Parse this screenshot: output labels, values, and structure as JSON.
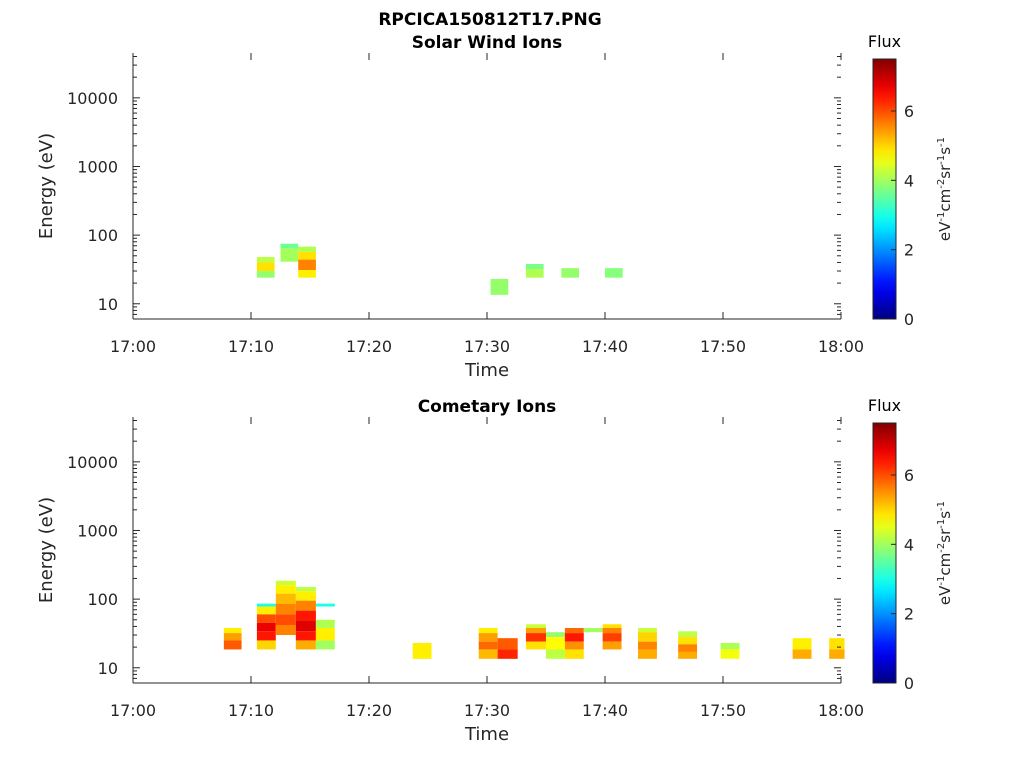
{
  "figure_title": "RPCICA150812T17.PNG",
  "colorbar": {
    "title": "Flux",
    "unit_parts": [
      {
        "t": "eV",
        "sup": false
      },
      {
        "t": "-1",
        "sup": true
      },
      {
        "t": "cm",
        "sup": false
      },
      {
        "t": "-2",
        "sup": true
      },
      {
        "t": "sr",
        "sup": false
      },
      {
        "t": "-1",
        "sup": true
      },
      {
        "t": "s",
        "sup": false
      },
      {
        "t": "-1",
        "sup": true
      }
    ],
    "range": [
      0,
      7.5
    ],
    "ticks": [
      "0",
      "2",
      "4",
      "6"
    ],
    "colormap": "jet"
  },
  "chart_data": [
    {
      "type": "heatmap",
      "title": "Solar Wind Ions",
      "xlabel": "Time",
      "ylabel": "Energy (eV)",
      "xlim": [
        "17:00",
        "18:00"
      ],
      "ylim": [
        6,
        45000
      ],
      "yscale": "log",
      "xticks": [
        "17:00",
        "17:10",
        "17:20",
        "17:30",
        "17:40",
        "17:50",
        "18:00"
      ],
      "yticks": [
        "10",
        "100",
        "1000",
        "10000"
      ],
      "cells": [
        {
          "t": [
            "17:10.5",
            "17:12"
          ],
          "e": [
            40,
            48
          ],
          "v": 4.2
        },
        {
          "t": [
            "17:10.5",
            "17:12"
          ],
          "e": [
            30,
            40
          ],
          "v": 4.9
        },
        {
          "t": [
            "17:10.5",
            "17:12"
          ],
          "e": [
            24,
            30
          ],
          "v": 3.9
        },
        {
          "t": [
            "17:12.5",
            "17:14"
          ],
          "e": [
            65,
            75
          ],
          "v": 3.6
        },
        {
          "t": [
            "17:12.5",
            "17:14"
          ],
          "e": [
            41,
            65
          ],
          "v": 4.0
        },
        {
          "t": [
            "17:14",
            "17:15.5"
          ],
          "e": [
            57,
            68
          ],
          "v": 4.1
        },
        {
          "t": [
            "17:14",
            "17:15.5"
          ],
          "e": [
            44,
            57
          ],
          "v": 4.9
        },
        {
          "t": [
            "17:14",
            "17:15.5"
          ],
          "e": [
            31,
            44
          ],
          "v": 5.6
        },
        {
          "t": [
            "17:14",
            "17:15.5"
          ],
          "e": [
            24,
            31
          ],
          "v": 4.8
        },
        {
          "t": [
            "17:30.3",
            "17:31.8"
          ],
          "e": [
            13.5,
            23
          ],
          "v": 3.9
        },
        {
          "t": [
            "17:33.3",
            "17:34.8"
          ],
          "e": [
            32,
            38
          ],
          "v": 3.7
        },
        {
          "t": [
            "17:33.3",
            "17:34.8"
          ],
          "e": [
            24,
            32
          ],
          "v": 4.1
        },
        {
          "t": [
            "17:36.3",
            "17:37.8"
          ],
          "e": [
            24,
            33
          ],
          "v": 3.9
        },
        {
          "t": [
            "17:40",
            "17:41.5"
          ],
          "e": [
            24,
            33
          ],
          "v": 3.8
        }
      ]
    },
    {
      "type": "heatmap",
      "title": "Cometary Ions",
      "xlabel": "Time",
      "ylabel": "Energy (eV)",
      "xlim": [
        "17:00",
        "18:00"
      ],
      "ylim": [
        6,
        45000
      ],
      "yscale": "log",
      "xticks": [
        "17:00",
        "17:10",
        "17:20",
        "17:30",
        "17:40",
        "17:50",
        "18:00"
      ],
      "yticks": [
        "10",
        "100",
        "1000",
        "10000"
      ],
      "cells": [
        {
          "t": [
            "17:07.7",
            "17:09.2"
          ],
          "e": [
            32,
            38
          ],
          "v": 4.8
        },
        {
          "t": [
            "17:07.7",
            "17:09.2"
          ],
          "e": [
            25,
            32
          ],
          "v": 5.4
        },
        {
          "t": [
            "17:07.7",
            "17:09.2"
          ],
          "e": [
            18.5,
            25
          ],
          "v": 5.9
        },
        {
          "t": [
            "17:10.5",
            "17:12.1"
          ],
          "e": [
            78,
            86
          ],
          "v": 3.0
        },
        {
          "t": [
            "17:10.5",
            "17:12.1"
          ],
          "e": [
            60,
            78
          ],
          "v": 4.8
        },
        {
          "t": [
            "17:10.5",
            "17:12.1"
          ],
          "e": [
            45,
            60
          ],
          "v": 6.0
        },
        {
          "t": [
            "17:10.5",
            "17:12.1"
          ],
          "e": [
            34,
            45
          ],
          "v": 6.7
        },
        {
          "t": [
            "17:10.5",
            "17:12.1"
          ],
          "e": [
            25,
            34
          ],
          "v": 6.4
        },
        {
          "t": [
            "17:10.5",
            "17:12.1"
          ],
          "e": [
            18.5,
            25
          ],
          "v": 5.0
        },
        {
          "t": [
            "17:12.1",
            "17:13.8"
          ],
          "e": [
            160,
            185
          ],
          "v": 4.3
        },
        {
          "t": [
            "17:12.1",
            "17:13.8"
          ],
          "e": [
            120,
            160
          ],
          "v": 4.8
        },
        {
          "t": [
            "17:12.1",
            "17:13.8"
          ],
          "e": [
            85,
            120
          ],
          "v": 5.2
        },
        {
          "t": [
            "17:12.1",
            "17:13.8"
          ],
          "e": [
            60,
            85
          ],
          "v": 5.6
        },
        {
          "t": [
            "17:12.1",
            "17:13.8"
          ],
          "e": [
            42,
            60
          ],
          "v": 6.0
        },
        {
          "t": [
            "17:12.1",
            "17:13.8"
          ],
          "e": [
            30,
            42
          ],
          "v": 5.6
        },
        {
          "t": [
            "17:13.8",
            "17:15.5"
          ],
          "e": [
            130,
            150
          ],
          "v": 4.2
        },
        {
          "t": [
            "17:13.8",
            "17:15.5"
          ],
          "e": [
            95,
            130
          ],
          "v": 4.8
        },
        {
          "t": [
            "17:13.8",
            "17:15.5"
          ],
          "e": [
            68,
            95
          ],
          "v": 5.6
        },
        {
          "t": [
            "17:13.8",
            "17:15.5"
          ],
          "e": [
            48,
            68
          ],
          "v": 6.4
        },
        {
          "t": [
            "17:13.8",
            "17:15.5"
          ],
          "e": [
            34,
            48
          ],
          "v": 6.8
        },
        {
          "t": [
            "17:13.8",
            "17:15.5"
          ],
          "e": [
            25,
            34
          ],
          "v": 6.4
        },
        {
          "t": [
            "17:13.8",
            "17:15.5"
          ],
          "e": [
            18.5,
            25
          ],
          "v": 5.3
        },
        {
          "t": [
            "17:15.5",
            "17:17.1"
          ],
          "e": [
            78,
            86
          ],
          "v": 3.0
        },
        {
          "t": [
            "17:15.5",
            "17:17.1"
          ],
          "e": [
            38,
            50
          ],
          "v": 4.1
        },
        {
          "t": [
            "17:15.5",
            "17:17.1"
          ],
          "e": [
            25,
            38
          ],
          "v": 4.8
        },
        {
          "t": [
            "17:15.5",
            "17:17.1"
          ],
          "e": [
            18.5,
            25
          ],
          "v": 4.0
        },
        {
          "t": [
            "17:23.7",
            "17:25.3"
          ],
          "e": [
            13.5,
            23
          ],
          "v": 4.8
        },
        {
          "t": [
            "17:29.3",
            "17:30.9"
          ],
          "e": [
            32,
            38
          ],
          "v": 4.8
        },
        {
          "t": [
            "17:29.3",
            "17:30.9"
          ],
          "e": [
            24,
            32
          ],
          "v": 5.4
        },
        {
          "t": [
            "17:29.3",
            "17:30.9"
          ],
          "e": [
            18.5,
            24
          ],
          "v": 5.8
        },
        {
          "t": [
            "17:29.3",
            "17:30.9"
          ],
          "e": [
            13.5,
            18.5
          ],
          "v": 5.2
        },
        {
          "t": [
            "17:30.9",
            "17:32.6"
          ],
          "e": [
            18.5,
            27
          ],
          "v": 5.9
        },
        {
          "t": [
            "17:30.9",
            "17:32.6"
          ],
          "e": [
            13.5,
            18.5
          ],
          "v": 6.3
        },
        {
          "t": [
            "17:33.3",
            "17:35",
            ""
          ],
          "e": [
            38,
            43
          ],
          "v": 4.3
        },
        {
          "t": [
            "17:33.3",
            "17:35"
          ],
          "e": [
            32,
            38
          ],
          "v": 5.4
        },
        {
          "t": [
            "17:33.3",
            "17:35"
          ],
          "e": [
            24,
            32
          ],
          "v": 6.2
        },
        {
          "t": [
            "17:33.3",
            "17:35"
          ],
          "e": [
            18.5,
            24
          ],
          "v": 4.9
        },
        {
          "t": [
            "17:35",
            "17:36.6"
          ],
          "e": [
            28,
            33
          ],
          "v": 3.9
        },
        {
          "t": [
            "17:35",
            "17:36.6"
          ],
          "e": [
            18.5,
            28
          ],
          "v": 4.7
        },
        {
          "t": [
            "17:35",
            "17:36.6"
          ],
          "e": [
            13.5,
            18.5
          ],
          "v": 4.2
        },
        {
          "t": [
            "17:36.6",
            "17:38.2"
          ],
          "e": [
            32,
            38
          ],
          "v": 5.8
        },
        {
          "t": [
            "17:36.6",
            "17:38.2"
          ],
          "e": [
            24,
            32
          ],
          "v": 6.4
        },
        {
          "t": [
            "17:36.6",
            "17:38.2"
          ],
          "e": [
            18.5,
            24
          ],
          "v": 5.5
        },
        {
          "t": [
            "17:36.6",
            "17:38.2"
          ],
          "e": [
            13.5,
            18.5
          ],
          "v": 4.9
        },
        {
          "t": [
            "17:38.2",
            "17:39.8"
          ],
          "e": [
            33,
            38
          ],
          "v": 4.0
        },
        {
          "t": [
            "17:39.8",
            "17:41.4"
          ],
          "e": [
            38,
            43
          ],
          "v": 4.9
        },
        {
          "t": [
            "17:39.8",
            "17:41.4"
          ],
          "e": [
            32,
            38
          ],
          "v": 5.6
        },
        {
          "t": [
            "17:39.8",
            "17:41.4"
          ],
          "e": [
            24,
            32
          ],
          "v": 6.1
        },
        {
          "t": [
            "17:39.8",
            "17:41.4"
          ],
          "e": [
            18.5,
            24
          ],
          "v": 5.4
        },
        {
          "t": [
            "17:42.8",
            "17:44.4"
          ],
          "e": [
            33,
            38
          ],
          "v": 4.3
        },
        {
          "t": [
            "17:42.8",
            "17:44.4"
          ],
          "e": [
            24,
            33
          ],
          "v": 5.0
        },
        {
          "t": [
            "17:42.8",
            "17:44.4"
          ],
          "e": [
            18.5,
            24
          ],
          "v": 5.6
        },
        {
          "t": [
            "17:42.8",
            "17:44.4"
          ],
          "e": [
            13.5,
            18.5
          ],
          "v": 5.3
        },
        {
          "t": [
            "17:46.2",
            "17:47.8"
          ],
          "e": [
            28,
            34
          ],
          "v": 4.2
        },
        {
          "t": [
            "17:46.2",
            "17:47.8"
          ],
          "e": [
            22,
            28
          ],
          "v": 4.9
        },
        {
          "t": [
            "17:46.2",
            "17:47.8"
          ],
          "e": [
            17,
            22
          ],
          "v": 5.6
        },
        {
          "t": [
            "17:46.2",
            "17:47.8"
          ],
          "e": [
            13.5,
            17
          ],
          "v": 5.3
        },
        {
          "t": [
            "17:49.8",
            "17:51.4"
          ],
          "e": [
            18.5,
            23
          ],
          "v": 4.1
        },
        {
          "t": [
            "17:49.8",
            "17:51.4"
          ],
          "e": [
            13.5,
            18.5
          ],
          "v": 4.6
        },
        {
          "t": [
            "17:55.9",
            "17:57.5"
          ],
          "e": [
            18.5,
            27
          ],
          "v": 4.8
        },
        {
          "t": [
            "17:55.9",
            "17:57.5"
          ],
          "e": [
            13.5,
            18.5
          ],
          "v": 5.3
        },
        {
          "t": [
            "17:59",
            "18:00.3"
          ],
          "e": [
            18.5,
            27
          ],
          "v": 4.9
        },
        {
          "t": [
            "17:59",
            "18:00.3"
          ],
          "e": [
            13.5,
            18.5
          ],
          "v": 5.3
        }
      ]
    }
  ]
}
